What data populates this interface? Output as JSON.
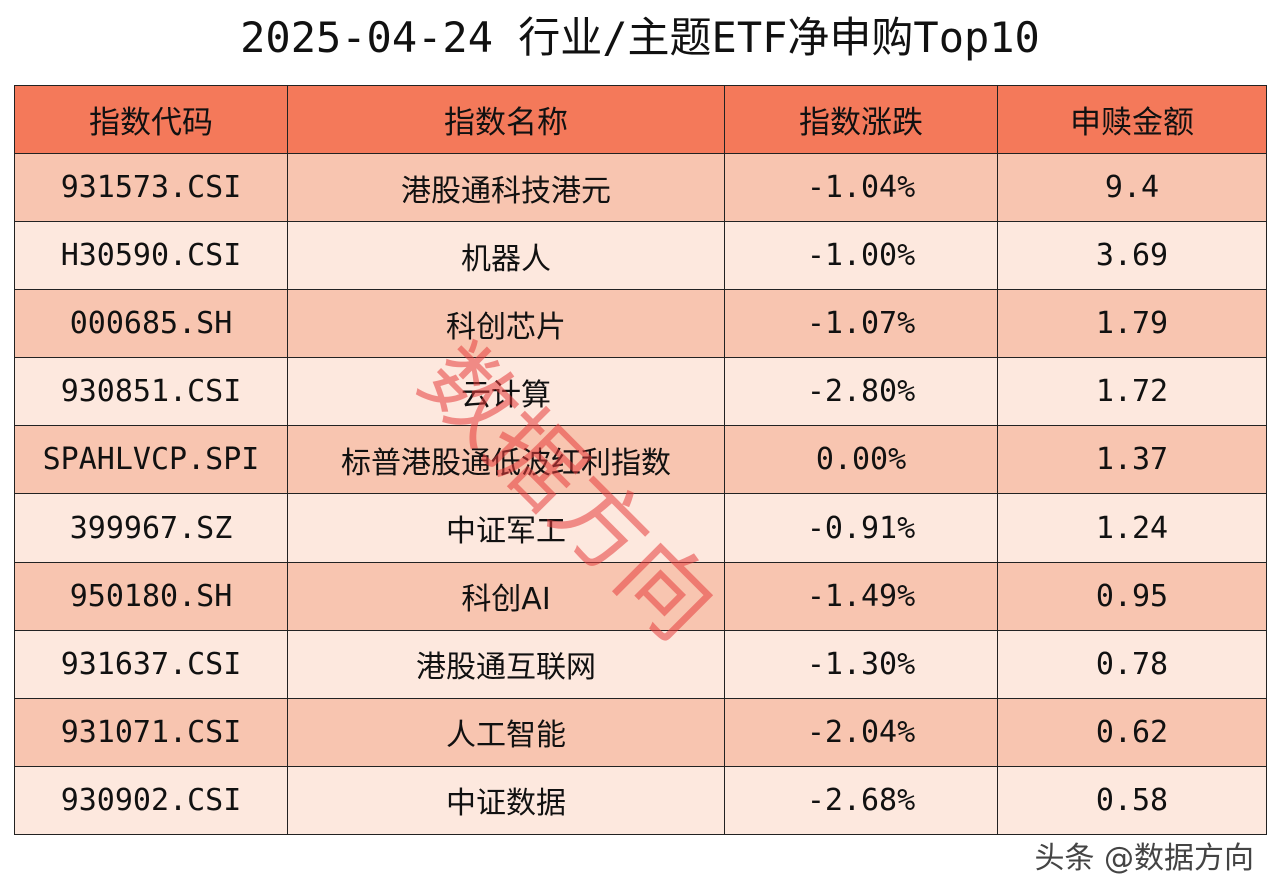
{
  "title": "2025-04-24 行业/主题ETF净申购Top10",
  "watermark": "数据方向",
  "credit": "头条 @数据方向",
  "colors": {
    "header": "#f4795a",
    "row_dark": "#f8c5b0",
    "row_light": "#fde8de",
    "watermark": "#e63c3c"
  },
  "chart_data": {
    "type": "table",
    "title": "2025-04-24 行业/主题ETF净申购Top10",
    "columns": [
      "指数代码",
      "指数名称",
      "指数涨跌",
      "申赎金额"
    ],
    "rows": [
      [
        "931573.CSI",
        "港股通科技港元",
        "-1.04%",
        "9.4"
      ],
      [
        "H30590.CSI",
        "机器人",
        "-1.00%",
        "3.69"
      ],
      [
        "000685.SH",
        "科创芯片",
        "-1.07%",
        "1.79"
      ],
      [
        "930851.CSI",
        "云计算",
        "-2.80%",
        "1.72"
      ],
      [
        "SPAHLVCP.SPI",
        "标普港股通低波红利指数",
        "0.00%",
        "1.37"
      ],
      [
        "399967.SZ",
        "中证军工",
        "-0.91%",
        "1.24"
      ],
      [
        "950180.SH",
        "科创AI",
        "-1.49%",
        "0.95"
      ],
      [
        "931637.CSI",
        "港股通互联网",
        "-1.30%",
        "0.78"
      ],
      [
        "931071.CSI",
        "人工智能",
        "-2.04%",
        "0.62"
      ],
      [
        "930902.CSI",
        "中证数据",
        "-2.68%",
        "0.58"
      ]
    ]
  }
}
